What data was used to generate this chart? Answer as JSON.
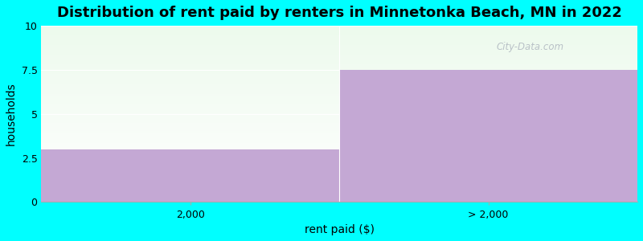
{
  "title": "Distribution of rent paid by renters in Minnetonka Beach, MN in 2022",
  "categories": [
    "2,000",
    "> 2,000"
  ],
  "values": [
    3.0,
    7.5
  ],
  "bar_color": "#C4A8D4",
  "bg_color": "#00FFFF",
  "plot_bg_top": "#edfaed",
  "plot_bg_bottom": "#ffffff",
  "xlabel": "rent paid ($)",
  "ylabel": "households",
  "ylim": [
    0,
    10
  ],
  "yticks": [
    0,
    2.5,
    5,
    7.5,
    10
  ],
  "grid_color": "#e8e8e8",
  "watermark": "City-Data.com",
  "title_fontsize": 13,
  "label_fontsize": 10,
  "tick_fontsize": 9
}
